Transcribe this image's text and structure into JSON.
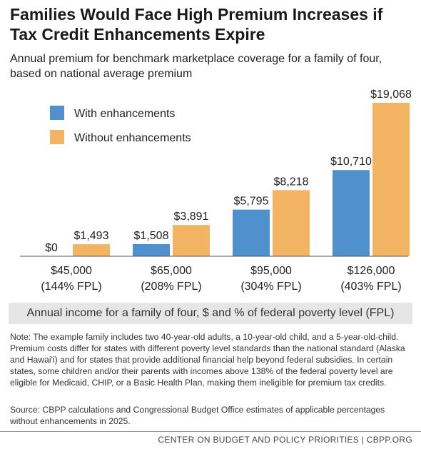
{
  "header": {
    "title": "Families Would Face High Premium Increases if Tax Credit Enhancements Expire",
    "subtitle": "Annual premium for benchmark marketplace coverage for a family of four, based on national average premium"
  },
  "chart_data": {
    "type": "bar",
    "categories": [
      "$45,000",
      "$65,000",
      "$95,000",
      "$126,000"
    ],
    "category_sublabels": [
      "(144% FPL)",
      "(208% FPL)",
      "(304% FPL)",
      "(403% FPL)"
    ],
    "series": [
      {
        "name": "With enhancements",
        "color": "#5091cd",
        "values": [
          0,
          1508,
          5795,
          10710
        ],
        "labels": [
          "$0",
          "$1,508",
          "$5,795",
          "$10,710"
        ]
      },
      {
        "name": "Without enhancements",
        "color": "#f2b462",
        "values": [
          1493,
          3891,
          8218,
          19068
        ],
        "labels": [
          "$1,493",
          "$3,891",
          "$8,218",
          "$19,068"
        ]
      }
    ],
    "xlabel": "Annual income for a family of four, $ and % of federal poverty level (FPL)",
    "ylabel": "",
    "ylim": [
      0,
      19068
    ],
    "grid": false,
    "legend": "top-left"
  },
  "notes": {
    "note": "Note: The example family includes two 40-year-old adults, a 10-year-old child, and a 5-year-old-child. Premium costs differ for states with different poverty level standards than the national standard (Alaska and Hawai'i) and for states that provide additional financial help beyond federal subsidies. In certain states, some children and/or their parents with incomes above 138% of the federal poverty level are eligible for Medicaid, CHIP, or a Basic Health Plan, making them ineligible for premium tax credits.",
    "source": "Source: CBPP calculations and Congressional Budget Office estimates of applicable percentages without enhancements in 2025."
  },
  "footer": {
    "text": "CENTER ON BUDGET AND POLICY PRIORITIES | CBPP.ORG"
  }
}
